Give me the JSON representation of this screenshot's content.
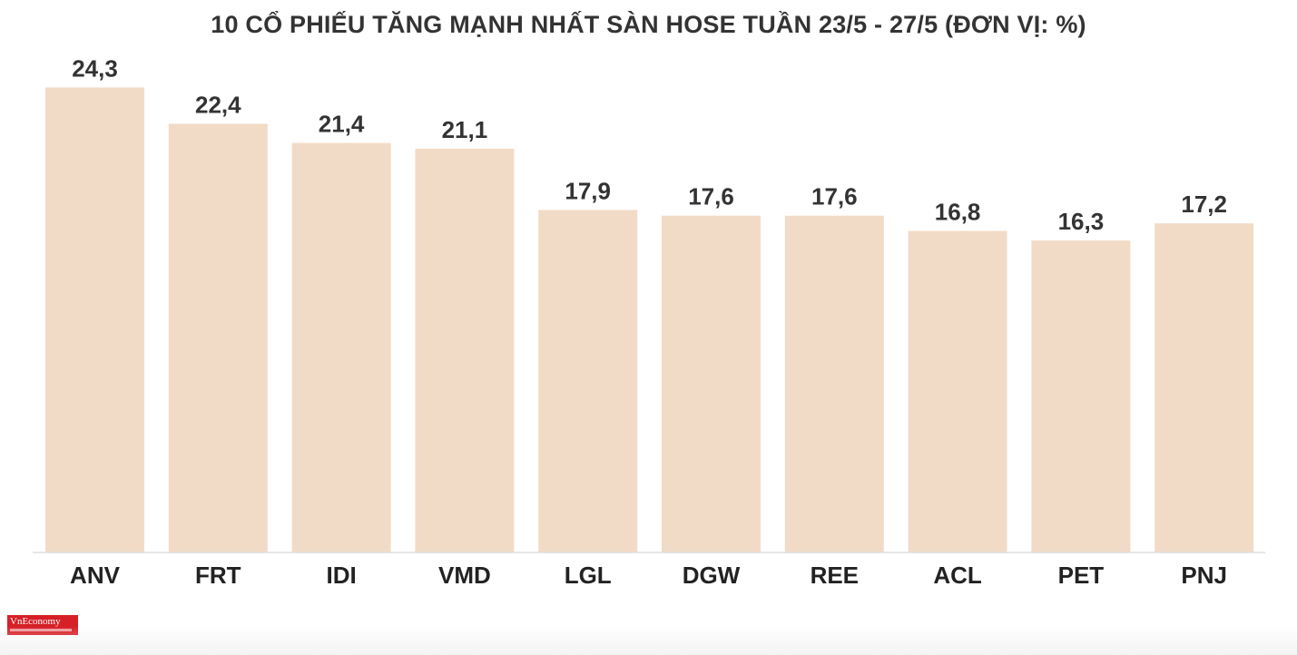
{
  "chart_data": {
    "type": "bar",
    "title": "10 CỔ PHIẾU TĂNG MẠNH NHẤT SÀN HOSE TUẦN 23/5 - 27/5 (ĐƠN VỊ: %)",
    "categories": [
      "ANV",
      "FRT",
      "IDI",
      "VMD",
      "LGL",
      "DGW",
      "REE",
      "ACL",
      "PET",
      "PNJ"
    ],
    "values": [
      24.3,
      22.4,
      21.4,
      21.1,
      17.9,
      17.6,
      17.6,
      16.8,
      16.3,
      17.2
    ],
    "value_labels": [
      "24,3",
      "22,4",
      "21,4",
      "21,1",
      "17,9",
      "17,6",
      "17,6",
      "16,8",
      "16,3",
      "17,2"
    ],
    "xlabel": "",
    "ylabel": "",
    "ylim": [
      0,
      26.5
    ],
    "grid": false,
    "legend": "none",
    "bar_color": "#f2dbc6"
  },
  "logo": {
    "text": "VnEconomy"
  }
}
